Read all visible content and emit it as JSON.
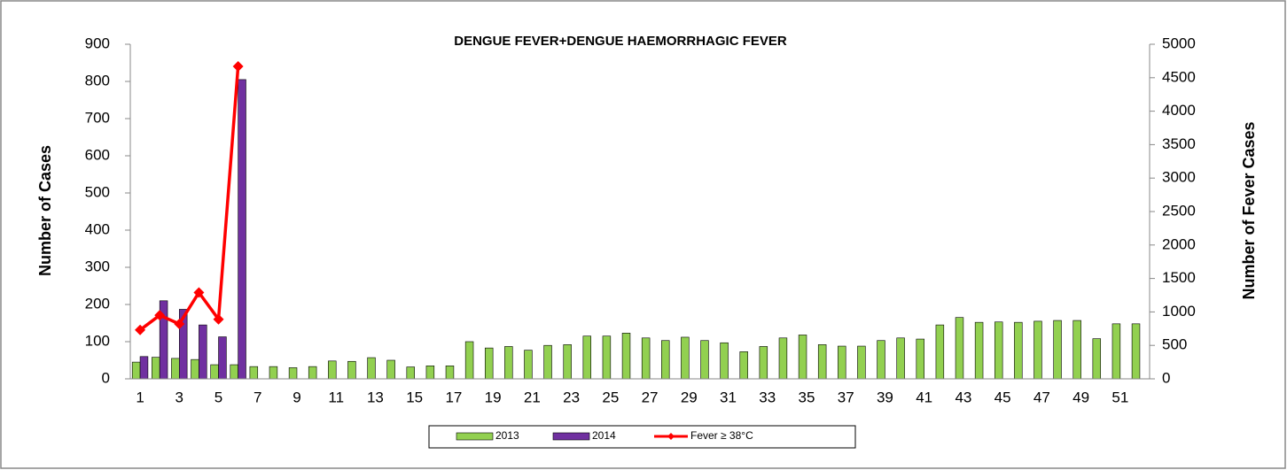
{
  "chart_data": {
    "type": "bar",
    "title": "DENGUE FEVER+DENGUE HAEMORRHAGIC FEVER",
    "y_label": "Number of Cases",
    "y2_label": "Number of Fever Cases",
    "categories": [
      "1",
      null,
      "3",
      null,
      "5",
      null,
      "7",
      null,
      "9",
      null,
      "11",
      null,
      "13",
      null,
      "15",
      null,
      "17",
      null,
      "19",
      null,
      "21",
      null,
      "23",
      null,
      "25",
      null,
      "27",
      null,
      "29",
      null,
      "31",
      null,
      "33",
      null,
      "35",
      null,
      "37",
      null,
      "39",
      null,
      "41",
      null,
      "43",
      null,
      "45",
      null,
      "47",
      null,
      "49",
      null,
      "51",
      null
    ],
    "series": [
      {
        "name": "2013",
        "type": "bar",
        "color": "#92d050",
        "values": [
          45,
          58,
          55,
          52,
          38,
          38,
          33,
          33,
          30,
          33,
          48,
          47,
          57,
          50,
          32,
          35,
          35,
          100,
          83,
          87,
          77,
          90,
          92,
          115,
          115,
          123,
          110,
          103,
          112,
          103,
          97,
          73,
          87,
          110,
          118,
          92,
          88,
          88,
          103,
          110,
          107,
          145,
          165,
          152,
          153,
          152,
          155,
          157,
          157,
          108,
          148,
          148
        ]
      },
      {
        "name": "2014",
        "type": "bar",
        "color": "#7030a0",
        "values": [
          60,
          210,
          187,
          145,
          113,
          805,
          null,
          null,
          null,
          null,
          null,
          null,
          null,
          null,
          null,
          null,
          null,
          null,
          null,
          null,
          null,
          null,
          null,
          null,
          null,
          null,
          null,
          null,
          null,
          null,
          null,
          null,
          null,
          null,
          null,
          null,
          null,
          null,
          null,
          null,
          null,
          null,
          null,
          null,
          null,
          null,
          null,
          null,
          null,
          null,
          null,
          null
        ]
      },
      {
        "name": "Fever ≥ 38°C",
        "type": "line",
        "axis": "y2",
        "color": "#ff0000",
        "values": [
          730,
          950,
          820,
          1290,
          890,
          4670,
          null,
          null,
          null,
          null,
          null,
          null,
          null,
          null,
          null,
          null,
          null,
          null,
          null,
          null,
          null,
          null,
          null,
          null,
          null,
          null,
          null,
          null,
          null,
          null,
          null,
          null,
          null,
          null,
          null,
          null,
          null,
          null,
          null,
          null,
          null,
          null,
          null,
          null,
          null,
          null,
          null,
          null,
          null,
          null,
          null,
          null
        ]
      }
    ],
    "ylim": [
      0,
      900
    ],
    "yticks": [
      0,
      100,
      200,
      300,
      400,
      500,
      600,
      700,
      800,
      900
    ],
    "y2lim": [
      0,
      5000
    ],
    "y2ticks": [
      0,
      500,
      1000,
      1500,
      2000,
      2500,
      3000,
      3500,
      4000,
      4500,
      5000
    ],
    "legend": "bottom"
  }
}
